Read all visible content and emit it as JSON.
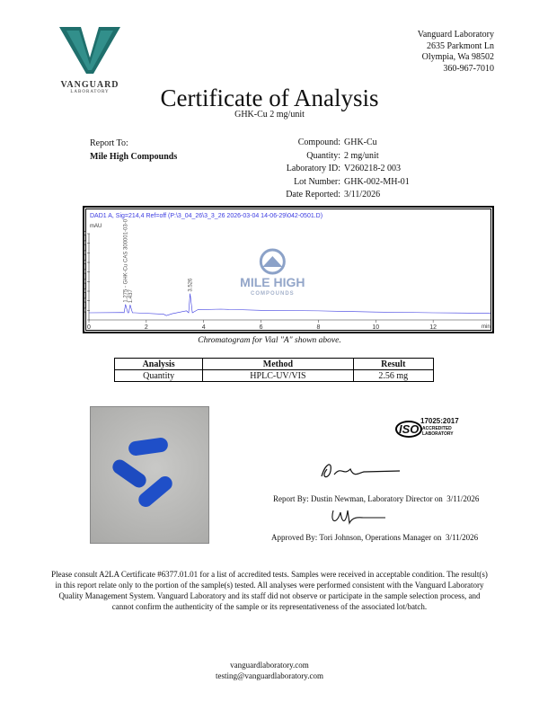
{
  "lab": {
    "logo_text": "VANGUARD",
    "logo_sub": "LABORATORY",
    "name": "Vanguard Laboratory",
    "street": "2635 Parkmont Ln",
    "city": "Olympia, Wa 98502",
    "phone": "360-967-7010"
  },
  "title": "Certificate of Analysis",
  "subtitle": "GHK-Cu 2 mg/unit",
  "report_to": {
    "label": "Report To:",
    "client": "Mile High Compounds"
  },
  "info": [
    {
      "label": "Compound:",
      "value": "GHK-Cu"
    },
    {
      "label": "Quantity:",
      "value": "2 mg/unit"
    },
    {
      "label": "Laboratory ID:",
      "value": "V260218-2 003"
    },
    {
      "label": "Lot Number:",
      "value": "GHK-002-MH-01"
    },
    {
      "label": "Date Reported:",
      "value": "3/11/2026"
    }
  ],
  "chart_data": {
    "type": "line",
    "title": "DAD1 A, Sig=214,4 Ref=off (P:\\3_04_26\\3_3_26 2026-03-04 14-06-29\\042-0501.D)",
    "ylabel": "mAU",
    "xlabel": "min",
    "xlim": [
      0,
      14
    ],
    "ylim": [
      0,
      1800
    ],
    "xticks": [
      0,
      2,
      4,
      6,
      8,
      10,
      12
    ],
    "yticks": [
      0,
      200,
      400,
      600,
      800,
      1000,
      1200,
      1400,
      1600,
      1800
    ],
    "grid": false,
    "peaks": [
      {
        "rt": 1.275,
        "label": "1.275 - GHK-Cu CAS 300001-03-0",
        "height": 175
      },
      {
        "rt": 1.437,
        "label": "1.437",
        "height": 165
      },
      {
        "rt": 3.526,
        "label": "3.526",
        "height": 400
      }
    ],
    "baseline": [
      [
        0,
        150
      ],
      [
        1.2,
        155
      ],
      [
        1.6,
        150
      ],
      [
        2.6,
        120
      ],
      [
        2.7,
        90
      ],
      [
        2.9,
        130
      ],
      [
        3.4,
        190
      ],
      [
        3.8,
        215
      ],
      [
        4.6,
        225
      ],
      [
        6,
        200
      ],
      [
        8,
        190
      ],
      [
        10,
        165
      ],
      [
        12,
        150
      ],
      [
        14,
        140
      ]
    ],
    "watermark": {
      "text": "MILE HIGH",
      "sub": "COMPOUNDS"
    },
    "color": "#3a3ae0"
  },
  "caption": "Chromatogram for Vial \"A\" shown above.",
  "table": {
    "headers": [
      "Analysis",
      "Method",
      "Result"
    ],
    "rows": [
      [
        "Quantity",
        "HPLC-UV/VIS",
        "2.56 mg"
      ]
    ]
  },
  "iso": {
    "mark": "ISO",
    "code": "17025:2017",
    "line1": "ACCREDITED",
    "line2": "LABORATORY"
  },
  "signatures": [
    {
      "text": "Report By: Dustin Newman, Laboratory Director on",
      "date": "3/11/2026"
    },
    {
      "text": "Approved By: Tori Johnson, Operations Manager on",
      "date": "3/11/2026"
    }
  ],
  "disclaimer": "Please consult A2LA Certificate #6377.01.01 for a list of accredited tests. Samples were received in acceptable condition. The result(s) in this report relate only to the portion of the sample(s) tested. All analyses were performed consistent with the Vanguard Laboratory Quality Management System. Vanguard Laboratory and its staff did not observe or participate in the sample selection process, and cannot confirm the authenticity of the sample or its representativeness of the associated lot/batch.",
  "footer": {
    "website": "vanguardlaboratory.com",
    "email": "testing@vanguardlaboratory.com"
  }
}
